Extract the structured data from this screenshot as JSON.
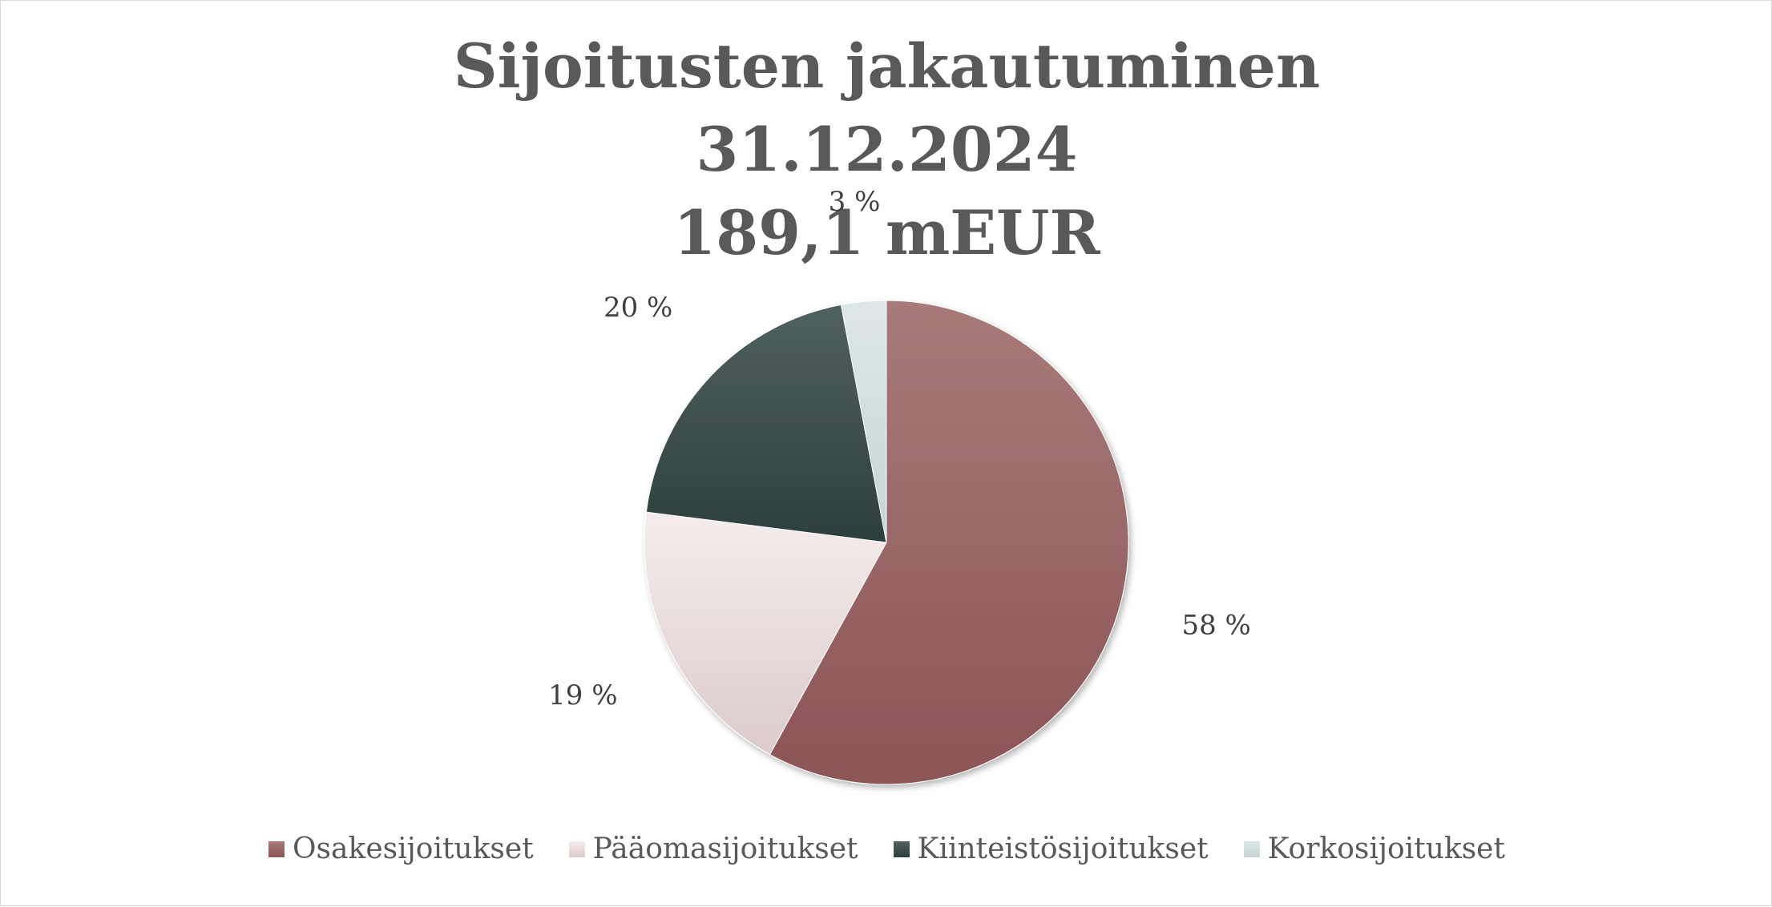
{
  "chart_data": {
    "type": "pie",
    "title": [
      "Sijoitusten jakautuminen",
      "31.12.2024",
      "189,1 mEUR"
    ],
    "series": [
      {
        "name": "Osakesijoitukset",
        "value": 58,
        "label": "58 %",
        "color": "#9a5b5e",
        "color_light": "#a87a7a",
        "color_dark": "#8c5456"
      },
      {
        "name": "Pääomasijoitukset",
        "value": 19,
        "label": "19 %",
        "color": "#efe3e3",
        "color_light": "#f5eded",
        "color_dark": "#dccbcb"
      },
      {
        "name": "Kiinteistösijoitukset",
        "value": 20,
        "label": "20 %",
        "color": "#2e4442",
        "color_light": "#51605f",
        "color_dark": "#2c3f3d"
      },
      {
        "name": "Korkosijoitukset",
        "value": 3,
        "label": "3 %",
        "color": "#d2dfe0",
        "color_light": "#dde7e8",
        "color_dark": "#c5d4d5"
      }
    ],
    "legend_position": "bottom",
    "start_angle_deg": 0,
    "direction": "clockwise"
  }
}
